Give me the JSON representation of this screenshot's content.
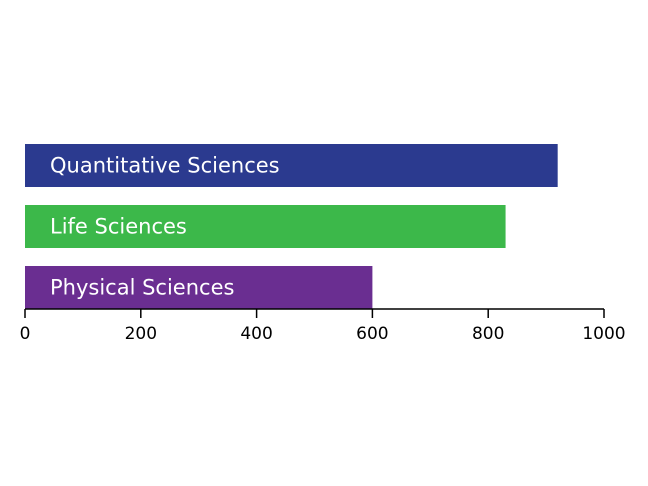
{
  "chart_data": {
    "type": "bar",
    "orientation": "horizontal",
    "categories": [
      "Quantitative Sciences",
      "Life Sciences",
      "Physical Sciences"
    ],
    "values": [
      920,
      830,
      600
    ],
    "colors": [
      "#2B3A8F",
      "#3CB84A",
      "#6A2E91"
    ],
    "title": "",
    "xlabel": "",
    "ylabel": "",
    "xlim": [
      0,
      1000
    ],
    "xticks": [
      0,
      200,
      400,
      600,
      800,
      1000
    ],
    "grid": false,
    "legend": "none",
    "labels_inside_bars": true
  }
}
